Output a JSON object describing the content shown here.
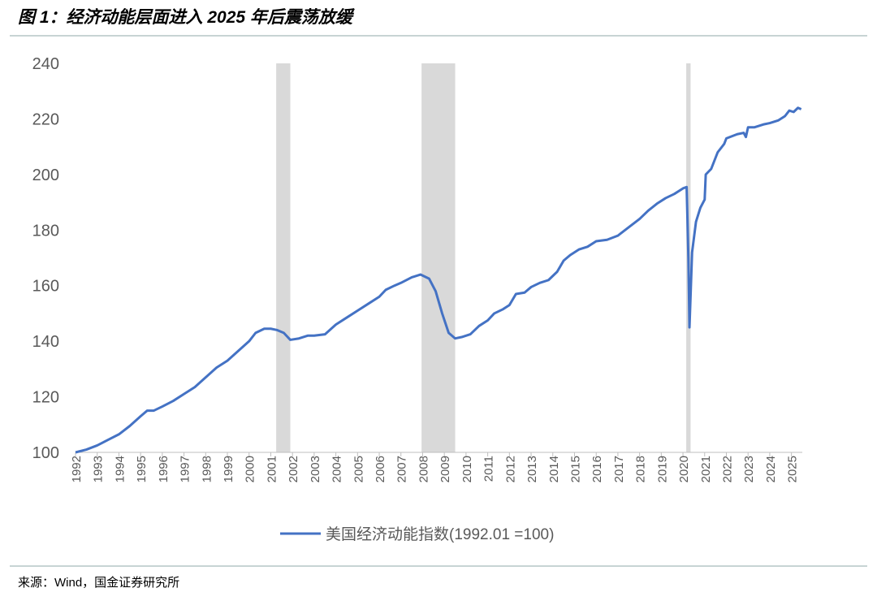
{
  "title": "图 1：经济动能层面进入 2025 年后震荡放缓",
  "source": "来源：Wind，国金证券研究所",
  "chart_data": {
    "type": "line",
    "x": [
      1992.0,
      1992.5,
      1993.0,
      1993.5,
      1994.0,
      1994.5,
      1995.0,
      1995.3,
      1995.6,
      1996.0,
      1996.5,
      1997.0,
      1997.5,
      1998.0,
      1998.5,
      1999.0,
      1999.5,
      2000.0,
      2000.3,
      2000.7,
      2001.0,
      2001.3,
      2001.6,
      2001.9,
      2002.3,
      2002.7,
      2003.0,
      2003.5,
      2004.0,
      2004.5,
      2005.0,
      2005.5,
      2006.0,
      2006.3,
      2006.7,
      2007.0,
      2007.5,
      2007.9,
      2008.3,
      2008.6,
      2008.9,
      2009.2,
      2009.5,
      2009.8,
      2010.2,
      2010.6,
      2011.0,
      2011.3,
      2011.7,
      2012.0,
      2012.3,
      2012.7,
      2013.0,
      2013.4,
      2013.8,
      2014.2,
      2014.5,
      2014.8,
      2015.2,
      2015.6,
      2016.0,
      2016.5,
      2017.0,
      2017.5,
      2018.0,
      2018.4,
      2018.8,
      2019.2,
      2019.6,
      2020.0,
      2020.17,
      2020.25,
      2020.3,
      2020.42,
      2020.6,
      2020.8,
      2021.0,
      2021.05,
      2021.3,
      2021.6,
      2021.9,
      2022.0,
      2022.5,
      2022.8,
      2022.9,
      2023.0,
      2023.3,
      2023.7,
      2024.0,
      2024.4,
      2024.7,
      2024.9,
      2025.1,
      2025.3,
      2025.45
    ],
    "series": [
      {
        "name": "美国经济动能指数(1992.01 =100)",
        "color": "#4472c4",
        "values": [
          100,
          101,
          102.5,
          104.5,
          106.5,
          109.5,
          113,
          115,
          115,
          116.5,
          118.5,
          121,
          123.5,
          127,
          130.5,
          133,
          136.5,
          140,
          143,
          144.5,
          144.5,
          144,
          143,
          140.5,
          141,
          142,
          142,
          142.5,
          146,
          148.5,
          151,
          153.5,
          156,
          158.5,
          160,
          161,
          163,
          164,
          162.5,
          158,
          150,
          143,
          141,
          141.5,
          142.5,
          145.5,
          147.5,
          150,
          151.5,
          153,
          157,
          157.5,
          159.5,
          161,
          162,
          165,
          169,
          171,
          173,
          174,
          176,
          176.5,
          178,
          181,
          184,
          187,
          189.5,
          191.5,
          193,
          195,
          195.5,
          170,
          145,
          172,
          183,
          188,
          191,
          200,
          202,
          208,
          211,
          213,
          214.5,
          215,
          213.5,
          217,
          217,
          218,
          218.5,
          219.5,
          221,
          223,
          222.5,
          224,
          223.5
        ]
      }
    ],
    "shaded_ranges": [
      [
        2001.25,
        2001.9
      ],
      [
        2007.95,
        2009.5
      ],
      [
        2020.15,
        2020.35
      ]
    ],
    "shade_color": "#d9d9d9",
    "xlim": [
      1992,
      2025.5
    ],
    "xticks": [
      1992,
      1993,
      1994,
      1995,
      1996,
      1997,
      1998,
      1999,
      2000,
      2001,
      2002,
      2003,
      2004,
      2005,
      2006,
      2007,
      2008,
      2009,
      2010,
      2011,
      2012,
      2013,
      2014,
      2015,
      2016,
      2017,
      2018,
      2019,
      2020,
      2021,
      2022,
      2023,
      2024,
      2025
    ],
    "ylim": [
      100,
      240
    ],
    "yticks": [
      100,
      120,
      140,
      160,
      180,
      200,
      220,
      240
    ]
  }
}
